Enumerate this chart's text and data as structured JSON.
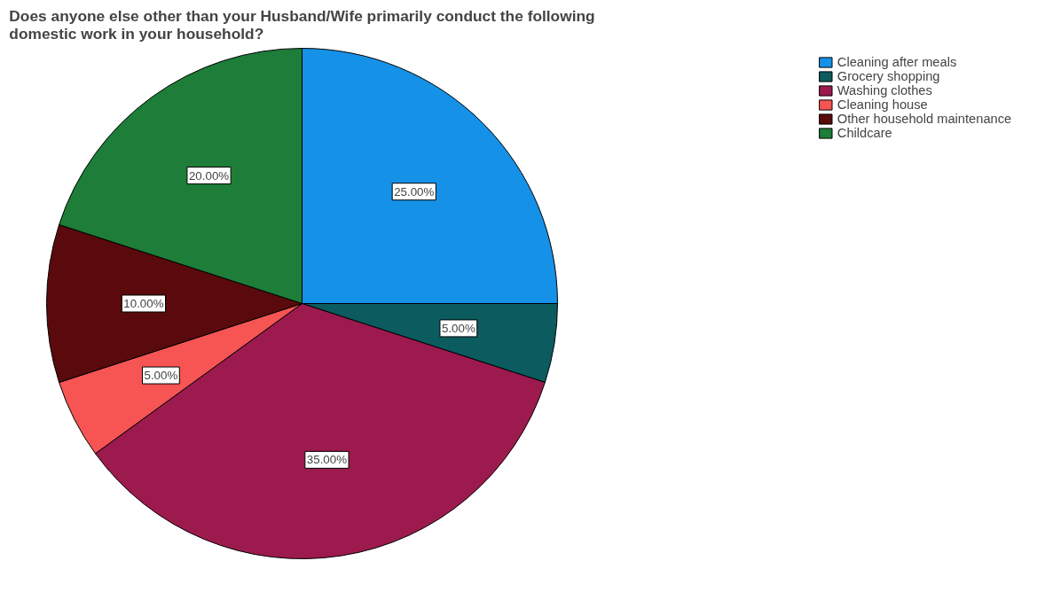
{
  "chart_data": {
    "type": "pie",
    "title": "Does anyone else other than your Husband/Wife primarily conduct the following domestic work in your household?",
    "categories": [
      "Cleaning after meals",
      "Grocery shopping",
      "Washing clothes",
      "Cleaning house",
      "Other household maintenance",
      "Childcare"
    ],
    "values": [
      25,
      5,
      35,
      5,
      10,
      20
    ],
    "value_labels": [
      "25.00%",
      "5.00%",
      "35.00%",
      "5.00%",
      "10.00%",
      "20.00%"
    ],
    "colors": [
      "#1591e8",
      "#0b5b5f",
      "#9c1a4e",
      "#f75454",
      "#5a0a0c",
      "#1e7d38"
    ],
    "legend": "top right"
  }
}
